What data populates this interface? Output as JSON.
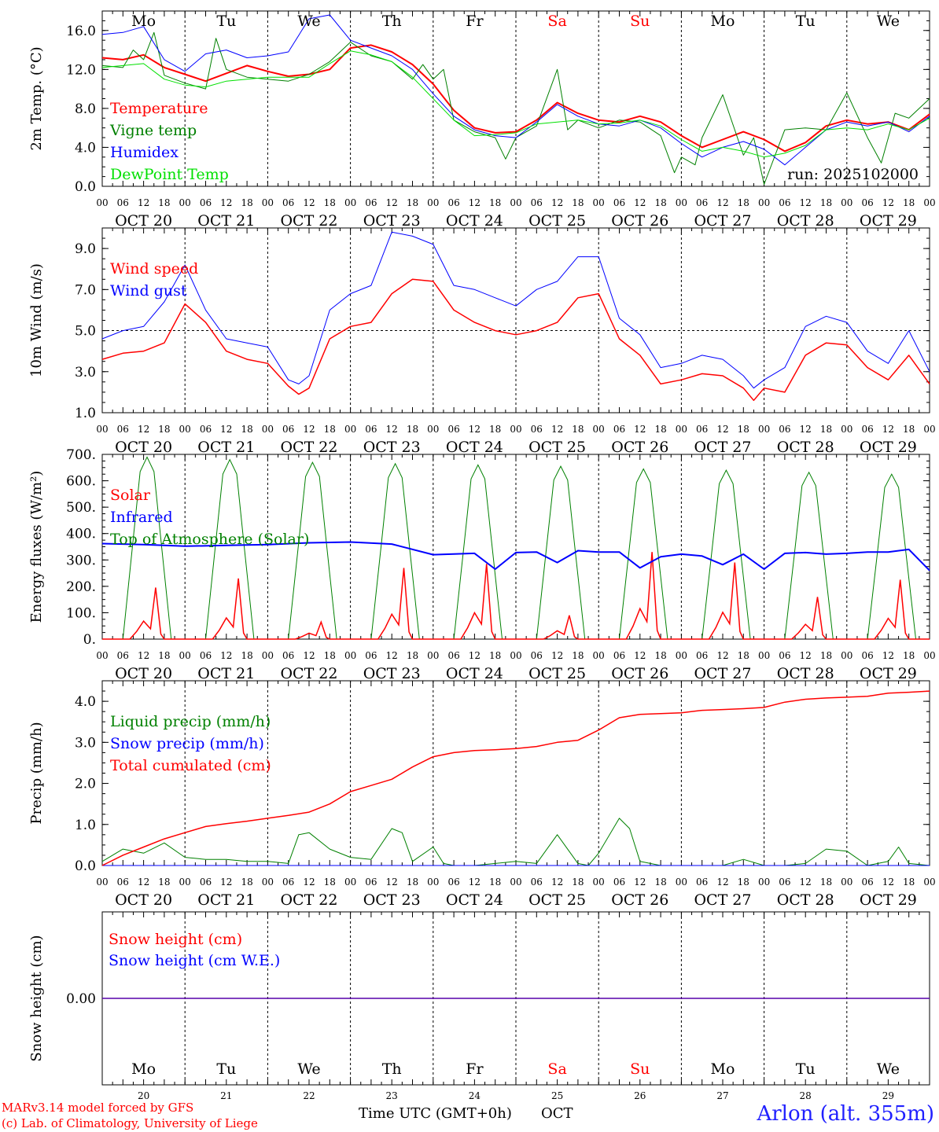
{
  "colors": {
    "red": "#ff0000",
    "green": "#008000",
    "blue": "#0000ff",
    "lightgreen": "#00e000",
    "axis": "#000000",
    "weekend": "#ff0000"
  },
  "x_axis": {
    "hour_labels": [
      "00",
      "06",
      "12",
      "18"
    ],
    "date_labels": [
      "OCT 20",
      "OCT 21",
      "OCT 22",
      "OCT 23",
      "OCT 24",
      "OCT 25",
      "OCT 26",
      "OCT 27",
      "OCT 28",
      "OCT 29"
    ],
    "weekdays": [
      "Mo",
      "Tu",
      "We",
      "Th",
      "Fr",
      "Sa",
      "Su",
      "Mo",
      "Tu",
      "We"
    ],
    "weekend_flags": [
      false,
      false,
      false,
      false,
      false,
      true,
      true,
      false,
      false,
      false
    ],
    "day_numbers": [
      "20",
      "21",
      "22",
      "23",
      "24",
      "25",
      "26",
      "27",
      "28",
      "29"
    ]
  },
  "run_label": "run: 2025102000",
  "footer": {
    "credit_line1": "MARv3.14 model forced by GFS",
    "credit_line2": "(c) Lab. of Climatology, University of Liege",
    "x_title": "Time UTC (GMT+0h)",
    "month": "OCT",
    "station": "Arlon (alt. 355m)"
  },
  "chart_data": [
    {
      "id": "temp",
      "type": "line",
      "ylabel": "2m Temp. (°C)",
      "ylim": [
        0,
        18
      ],
      "yticks": [
        0,
        4,
        8,
        12,
        16
      ],
      "ytick_labels": [
        "0.0",
        "4.0",
        "8.0",
        "12.0",
        "16.0"
      ],
      "x_unit": "hours since OCT 20 00 UTC",
      "legend": [
        "Temperature",
        "Vigne temp",
        "Humidex",
        "DewPoint Temp"
      ],
      "series": [
        {
          "name": "Temperature",
          "color": "red",
          "width": 2,
          "x": [
            0,
            6,
            12,
            18,
            24,
            30,
            36,
            42,
            48,
            54,
            60,
            66,
            72,
            78,
            84,
            90,
            96,
            102,
            108,
            114,
            120,
            126,
            132,
            138,
            144,
            150,
            156,
            162,
            168,
            174,
            180,
            186,
            192,
            198,
            204,
            210,
            216,
            222,
            228,
            234,
            240
          ],
          "y": [
            13.2,
            13.0,
            13.5,
            12.2,
            11.5,
            10.8,
            11.6,
            12.4,
            11.8,
            11.3,
            11.5,
            12.0,
            14.2,
            14.5,
            13.8,
            12.5,
            10.5,
            7.8,
            6.0,
            5.5,
            5.6,
            6.8,
            8.6,
            7.5,
            6.8,
            6.6,
            7.2,
            6.6,
            5.2,
            4.0,
            4.8,
            5.6,
            4.8,
            3.6,
            4.5,
            6.2,
            6.8,
            6.4,
            6.6,
            5.8,
            7.4
          ]
        },
        {
          "name": "Vigne temp",
          "color": "green",
          "width": 1,
          "x": [
            0,
            6,
            9,
            12,
            15,
            18,
            24,
            30,
            33,
            36,
            42,
            48,
            54,
            60,
            66,
            72,
            78,
            84,
            90,
            93,
            96,
            99,
            102,
            108,
            114,
            117,
            120,
            126,
            132,
            135,
            138,
            144,
            150,
            156,
            162,
            166,
            168,
            172,
            174,
            180,
            186,
            189,
            192,
            198,
            204,
            210,
            216,
            222,
            226,
            230,
            234,
            240
          ],
          "y": [
            12.4,
            12.2,
            14.0,
            13.0,
            15.8,
            11.4,
            10.6,
            10.0,
            15.2,
            12.0,
            11.2,
            11.0,
            10.8,
            11.5,
            12.8,
            14.8,
            13.4,
            12.8,
            11.0,
            12.5,
            11.0,
            12.0,
            6.8,
            5.6,
            5.0,
            2.8,
            5.0,
            6.2,
            12.0,
            5.8,
            6.8,
            6.0,
            6.8,
            6.6,
            5.2,
            1.4,
            3.0,
            2.2,
            5.0,
            9.4,
            3.2,
            5.0,
            0.2,
            5.8,
            6.0,
            5.8,
            9.6,
            5.0,
            2.4,
            7.5,
            7.0,
            9.0
          ]
        },
        {
          "name": "Humidex",
          "color": "blue",
          "width": 1,
          "x": [
            0,
            6,
            12,
            18,
            24,
            30,
            36,
            42,
            48,
            54,
            60,
            66,
            72,
            78,
            84,
            90,
            96,
            102,
            108,
            114,
            120,
            126,
            132,
            138,
            144,
            150,
            156,
            162,
            168,
            174,
            180,
            186,
            192,
            198,
            204,
            210,
            216,
            222,
            228,
            234,
            240
          ],
          "y": [
            15.6,
            15.8,
            16.4,
            13.0,
            11.8,
            13.6,
            14.0,
            13.2,
            13.4,
            13.8,
            17.2,
            17.6,
            15.0,
            14.2,
            13.4,
            12.0,
            9.5,
            7.2,
            5.8,
            5.2,
            5.0,
            6.6,
            8.4,
            7.2,
            6.4,
            6.2,
            6.8,
            6.0,
            4.4,
            3.0,
            4.0,
            4.6,
            3.8,
            2.2,
            4.0,
            5.8,
            6.6,
            6.2,
            6.6,
            5.6,
            7.2
          ]
        },
        {
          "name": "DewPoint Temp",
          "color": "lightgreen",
          "width": 1,
          "x": [
            0,
            6,
            12,
            18,
            24,
            30,
            36,
            42,
            48,
            54,
            60,
            66,
            72,
            78,
            84,
            90,
            96,
            102,
            108,
            114,
            120,
            126,
            132,
            138,
            144,
            150,
            156,
            162,
            168,
            174,
            180,
            186,
            192,
            198,
            204,
            210,
            216,
            222,
            228,
            234,
            240
          ],
          "y": [
            12.2,
            12.4,
            12.6,
            11.0,
            10.4,
            10.2,
            10.8,
            11.0,
            11.2,
            11.2,
            11.2,
            12.6,
            13.9,
            13.5,
            12.8,
            11.2,
            9.0,
            6.8,
            5.2,
            5.3,
            5.5,
            6.4,
            6.6,
            6.8,
            6.4,
            6.5,
            6.8,
            6.2,
            4.8,
            3.6,
            4.0,
            3.6,
            3.0,
            3.4,
            4.2,
            5.8,
            6.0,
            5.8,
            6.4,
            5.8,
            7.0
          ]
        }
      ]
    },
    {
      "id": "wind",
      "type": "line",
      "ylabel": "10m Wind (m/s)",
      "ylim": [
        1,
        10
      ],
      "yticks": [
        1,
        3,
        5,
        7,
        9
      ],
      "ytick_labels": [
        "1.0",
        "3.0",
        "5.0",
        "7.0",
        "9.0"
      ],
      "ref_line": 5,
      "legend": [
        "Wind speed",
        "Wind gust"
      ],
      "series": [
        {
          "name": "Wind speed",
          "color": "red",
          "width": 1.5,
          "x": [
            0,
            6,
            12,
            18,
            24,
            30,
            36,
            42,
            48,
            54,
            57,
            60,
            66,
            72,
            78,
            84,
            90,
            96,
            102,
            108,
            114,
            120,
            126,
            132,
            138,
            144,
            150,
            156,
            162,
            168,
            174,
            180,
            186,
            189,
            192,
            198,
            204,
            210,
            216,
            222,
            228,
            234,
            240
          ],
          "y": [
            3.6,
            3.9,
            4.0,
            4.4,
            6.3,
            5.4,
            4.0,
            3.6,
            3.4,
            2.3,
            1.9,
            2.2,
            4.6,
            5.2,
            5.4,
            6.8,
            7.5,
            7.4,
            6.0,
            5.4,
            5.0,
            4.8,
            5.0,
            5.4,
            6.6,
            6.8,
            4.6,
            3.8,
            2.4,
            2.6,
            2.9,
            2.8,
            2.2,
            1.6,
            2.2,
            2.0,
            3.8,
            4.4,
            4.3,
            3.2,
            2.6,
            3.8,
            2.4
          ]
        },
        {
          "name": "Wind gust",
          "color": "blue",
          "width": 1,
          "x": [
            0,
            6,
            12,
            18,
            24,
            30,
            36,
            42,
            48,
            54,
            57,
            60,
            66,
            72,
            78,
            84,
            90,
            96,
            102,
            108,
            114,
            120,
            126,
            132,
            138,
            144,
            150,
            156,
            162,
            168,
            174,
            180,
            186,
            189,
            192,
            198,
            204,
            210,
            216,
            222,
            228,
            234,
            240
          ],
          "y": [
            4.6,
            5.0,
            5.2,
            6.4,
            8.2,
            6.0,
            4.6,
            4.4,
            4.2,
            2.6,
            2.4,
            2.8,
            6.0,
            6.8,
            7.2,
            9.8,
            9.6,
            9.2,
            7.2,
            7.0,
            6.6,
            6.2,
            7.0,
            7.4,
            8.6,
            8.6,
            5.6,
            4.8,
            3.2,
            3.4,
            3.8,
            3.6,
            2.8,
            2.2,
            2.6,
            3.2,
            5.2,
            5.7,
            5.4,
            4.0,
            3.4,
            5.0,
            3.0
          ]
        }
      ]
    },
    {
      "id": "energy",
      "type": "line",
      "ylabel": "Energy fluxes (W/m²)",
      "ylim": [
        0,
        700
      ],
      "yticks": [
        0,
        100,
        200,
        300,
        400,
        500,
        600,
        700
      ],
      "ytick_labels": [
        "0.",
        "100.",
        "200.",
        "300.",
        "400.",
        "500.",
        "600.",
        "700."
      ],
      "legend": [
        "Solar",
        "Infrared",
        "Top of Atmosphere (Solar)"
      ],
      "toa_daily_peaks": [
        690,
        680,
        670,
        665,
        660,
        655,
        645,
        640,
        632,
        625
      ],
      "solar_daily_peaks": [
        195,
        230,
        65,
        270,
        285,
        90,
        330,
        290,
        160,
        225
      ],
      "series": [
        {
          "name": "Infrared",
          "color": "blue",
          "width": 2,
          "x": [
            0,
            12,
            24,
            36,
            48,
            60,
            72,
            84,
            96,
            108,
            114,
            120,
            126,
            132,
            138,
            144,
            150,
            156,
            162,
            168,
            174,
            180,
            186,
            192,
            198,
            204,
            210,
            216,
            222,
            228,
            234,
            240
          ],
          "y": [
            362,
            358,
            352,
            355,
            358,
            365,
            368,
            360,
            320,
            325,
            265,
            328,
            330,
            290,
            335,
            330,
            330,
            270,
            312,
            322,
            315,
            282,
            322,
            265,
            325,
            328,
            322,
            325,
            330,
            330,
            340,
            260
          ]
        }
      ]
    },
    {
      "id": "precip",
      "type": "line",
      "ylabel": "Precip (mm/h)",
      "ylim": [
        0,
        4.5
      ],
      "yticks": [
        0,
        1,
        2,
        3,
        4
      ],
      "ytick_labels": [
        "0.0",
        "1.0",
        "2.0",
        "3.0",
        "4.0"
      ],
      "legend": [
        "Liquid precip (mm/h)",
        "Snow precip (mm/h)",
        "Total cumulated (cm)"
      ],
      "series": [
        {
          "name": "Liquid precip (mm/h)",
          "color": "green",
          "width": 1,
          "x": [
            0,
            6,
            12,
            18,
            24,
            30,
            36,
            42,
            48,
            54,
            57,
            60,
            66,
            72,
            78,
            84,
            87,
            90,
            96,
            99,
            102,
            108,
            114,
            120,
            126,
            132,
            138,
            141,
            144,
            150,
            153,
            156,
            162,
            168,
            174,
            180,
            186,
            192,
            198,
            204,
            210,
            216,
            222,
            228,
            231,
            234,
            240
          ],
          "y": [
            0.1,
            0.4,
            0.3,
            0.55,
            0.2,
            0.15,
            0.15,
            0.1,
            0.1,
            0.05,
            0.75,
            0.8,
            0.4,
            0.2,
            0.15,
            0.9,
            0.8,
            0.1,
            0.45,
            0.05,
            0.0,
            0.0,
            0.05,
            0.1,
            0.05,
            0.75,
            0.05,
            0.0,
            0.3,
            1.15,
            0.9,
            0.1,
            0.0,
            0.0,
            0.0,
            0.0,
            0.15,
            0.0,
            0.0,
            0.05,
            0.4,
            0.35,
            0.0,
            0.1,
            0.45,
            0.05,
            0.0
          ]
        },
        {
          "name": "Snow precip (mm/h)",
          "color": "blue",
          "width": 1,
          "x": [
            0,
            240
          ],
          "y": [
            0,
            0
          ]
        },
        {
          "name": "Total cumulated (cm)",
          "color": "red",
          "width": 1.5,
          "x": [
            0,
            6,
            12,
            18,
            24,
            30,
            36,
            42,
            48,
            54,
            60,
            66,
            72,
            78,
            84,
            90,
            96,
            102,
            108,
            114,
            120,
            126,
            132,
            138,
            144,
            150,
            156,
            162,
            168,
            174,
            180,
            186,
            192,
            198,
            204,
            210,
            216,
            222,
            228,
            234,
            240
          ],
          "y": [
            0.0,
            0.25,
            0.45,
            0.65,
            0.8,
            0.95,
            1.02,
            1.08,
            1.15,
            1.22,
            1.3,
            1.5,
            1.8,
            1.95,
            2.1,
            2.4,
            2.65,
            2.75,
            2.8,
            2.82,
            2.85,
            2.9,
            3.0,
            3.05,
            3.3,
            3.6,
            3.68,
            3.7,
            3.72,
            3.78,
            3.8,
            3.82,
            3.85,
            3.98,
            4.05,
            4.08,
            4.1,
            4.12,
            4.2,
            4.22,
            4.25
          ]
        }
      ]
    },
    {
      "id": "snow",
      "type": "line",
      "ylabel": "Snow height (cm)",
      "ylim": [
        -1,
        1
      ],
      "yticks": [
        0
      ],
      "ytick_labels": [
        "0.00"
      ],
      "legend": [
        "Snow height (cm)",
        "Snow height (cm W.E.)"
      ],
      "series": [
        {
          "name": "Snow height (cm)",
          "color": "red",
          "width": 1.5,
          "x": [
            0,
            240
          ],
          "y": [
            0,
            0
          ]
        },
        {
          "name": "Snow height (cm W.E.)",
          "color": "blue",
          "width": 1,
          "x": [
            0,
            240
          ],
          "y": [
            0,
            0
          ]
        }
      ]
    }
  ]
}
